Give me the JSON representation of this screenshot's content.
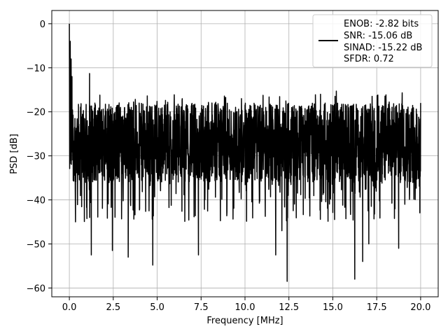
{
  "chart_data": {
    "type": "line",
    "xlabel": "Frequency [MHz]",
    "ylabel": "PSD [dB]",
    "xlim": [
      -1.0,
      21.0
    ],
    "ylim": [
      -62,
      3
    ],
    "xticks": [
      0.0,
      2.5,
      5.0,
      7.5,
      10.0,
      12.5,
      15.0,
      17.5,
      20.0
    ],
    "xtick_labels": [
      "0.0",
      "2.5",
      "5.0",
      "7.5",
      "10.0",
      "12.5",
      "15.0",
      "17.5",
      "20.0"
    ],
    "yticks": [
      0,
      -10,
      -20,
      -30,
      -40,
      -50,
      -60
    ],
    "ytick_labels": [
      "0",
      "−10",
      "−20",
      "−30",
      "−40",
      "−50",
      "−60"
    ],
    "grid": true,
    "legend_position": "top-right",
    "legend_lines": [
      "ENOB: -2.82 bits",
      "SNR: -15.06 dB",
      "SINAD: -15.22 dB",
      "SFDR: 0.72"
    ],
    "series": [
      {
        "color": "#000000",
        "noise_floor_db": -27,
        "x_range": [
          0.0,
          20.0
        ],
        "peak": {
          "x": 0.0,
          "y": 0
        },
        "notable_points": [
          {
            "x": 0.05,
            "y": -4
          },
          {
            "x": 0.1,
            "y": -8
          },
          {
            "x": 0.15,
            "y": -12
          },
          {
            "x": 0.35,
            "y": -45
          },
          {
            "x": 1.25,
            "y": -52.5
          },
          {
            "x": 2.45,
            "y": -51.5
          },
          {
            "x": 3.35,
            "y": -53
          },
          {
            "x": 4.75,
            "y": -54.8
          },
          {
            "x": 7.35,
            "y": -52.5
          },
          {
            "x": 11.75,
            "y": -52.5
          },
          {
            "x": 12.4,
            "y": -58.5
          },
          {
            "x": 16.25,
            "y": -58
          },
          {
            "x": 16.7,
            "y": -54
          },
          {
            "x": 17.05,
            "y": -50
          },
          {
            "x": 18.75,
            "y": -51
          },
          {
            "x": 12.1,
            "y": -47
          },
          {
            "x": 1.15,
            "y": -11.3
          },
          {
            "x": 15.2,
            "y": -15.3
          },
          {
            "x": 18.95,
            "y": -15.7
          },
          {
            "x": 20.0,
            "y": -18
          }
        ]
      }
    ]
  }
}
